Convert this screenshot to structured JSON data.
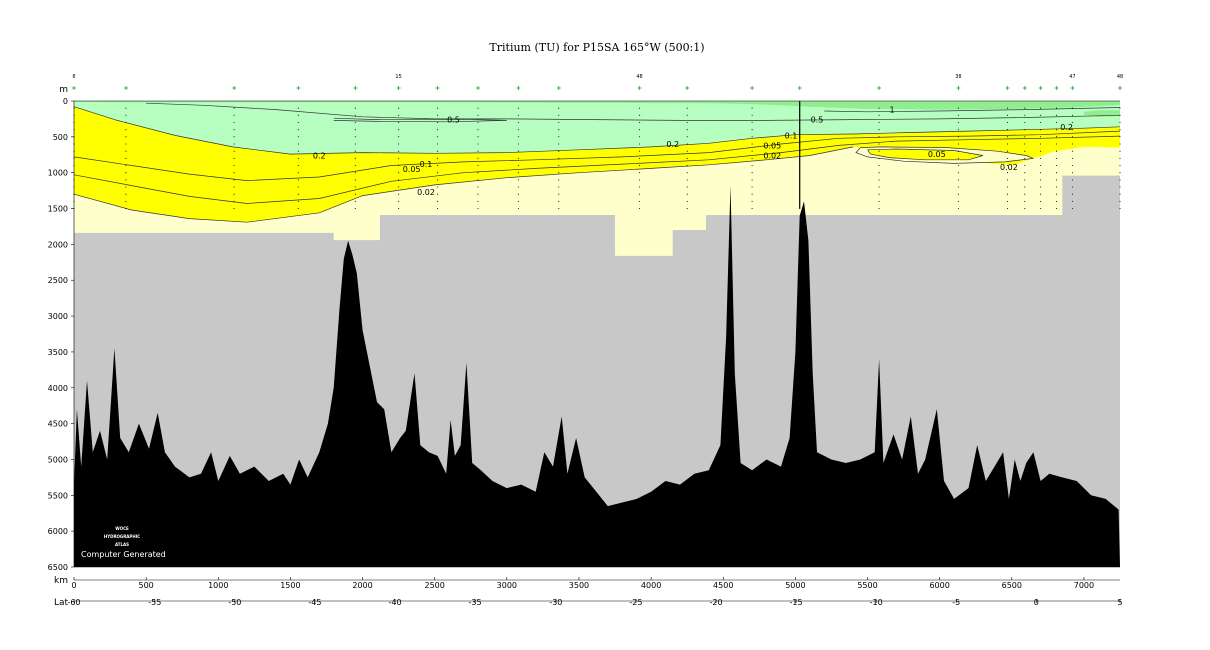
{
  "chart_data": {
    "type": "section",
    "title": "Tritium (TU) for P15SA 165°W (500:1)",
    "yunit": "m",
    "xunit": "km",
    "lat_label": "Lat",
    "ylim": [
      0,
      6500
    ],
    "xlim": [
      0,
      7250
    ],
    "yticks": [
      "0",
      "500",
      "1000",
      "1500",
      "2000",
      "2500",
      "3000",
      "3500",
      "4000",
      "4500",
      "5000",
      "5500",
      "6000",
      "6500"
    ],
    "xticks": [
      "0",
      "500",
      "1000",
      "1500",
      "2000",
      "2500",
      "3000",
      "3500",
      "4000",
      "4500",
      "5000",
      "5500",
      "6000",
      "6500",
      "7000"
    ],
    "lat_ticks": [
      {
        "km": 0,
        "label": "-60"
      },
      {
        "km": 560,
        "label": "-55"
      },
      {
        "km": 1115,
        "label": "-50"
      },
      {
        "km": 1670,
        "label": "-45"
      },
      {
        "km": 2225,
        "label": "-40"
      },
      {
        "km": 2780,
        "label": "-35"
      },
      {
        "km": 3340,
        "label": "-30"
      },
      {
        "km": 3895,
        "label": "-25"
      },
      {
        "km": 4450,
        "label": "-20"
      },
      {
        "km": 5005,
        "label": "-15"
      },
      {
        "km": 5560,
        "label": "-10"
      },
      {
        "km": 6115,
        "label": "-5"
      },
      {
        "km": 6670,
        "label": "0"
      },
      {
        "km": 7250,
        "label": "5"
      }
    ],
    "stations_km": [
      0,
      360,
      1110,
      1555,
      1950,
      2250,
      2520,
      2800,
      3080,
      3360,
      3920,
      4250,
      4700,
      5030,
      5580,
      6130,
      6470,
      6590,
      6700,
      6810,
      6920,
      7250
    ],
    "station_labels": [
      {
        "km": 0,
        "label": "8"
      },
      {
        "km": 2250,
        "label": "15"
      },
      {
        "km": 3920,
        "label": "48"
      },
      {
        "km": 6130,
        "label": "38"
      },
      {
        "km": 6920,
        "label": "47"
      },
      {
        "km": 7250,
        "label": "48"
      }
    ],
    "contour_levels": [
      0.02,
      0.05,
      0.1,
      0.2,
      0.5,
      1
    ],
    "contour_labels": [
      {
        "text": "0.5",
        "x": 2630,
        "y": 260
      },
      {
        "text": "0.5",
        "x": 5150,
        "y": 260
      },
      {
        "text": "1",
        "x": 5670,
        "y": 120
      },
      {
        "text": "0.2",
        "x": 1700,
        "y": 760
      },
      {
        "text": "0.2",
        "x": 4150,
        "y": 600
      },
      {
        "text": "0.2",
        "x": 6880,
        "y": 360
      },
      {
        "text": "0.1",
        "x": 2440,
        "y": 880
      },
      {
        "text": "0.1",
        "x": 4970,
        "y": 480
      },
      {
        "text": "0.05",
        "x": 2340,
        "y": 950
      },
      {
        "text": "0.05",
        "x": 4840,
        "y": 620
      },
      {
        "text": "0.05",
        "x": 5980,
        "y": 740
      },
      {
        "text": "0.02",
        "x": 2440,
        "y": 1270
      },
      {
        "text": "0.02",
        "x": 4840,
        "y": 760
      },
      {
        "text": "0.02",
        "x": 6480,
        "y": 920
      }
    ],
    "colors": {
      "background_mask": "#c8c8c8",
      "bathymetry": "#000000",
      "band_lt_0_02": "#ffffcc",
      "band_0_02_to_0_2": "#ffff00",
      "band_0_2_to_1": "#b6ffc0",
      "band_gt_1": "#90ee90"
    }
  },
  "logo": {
    "line1": "WOCE",
    "line2": "HYDROGRAPHIC",
    "line3": "ATLAS",
    "credit": "Computer Generated"
  }
}
